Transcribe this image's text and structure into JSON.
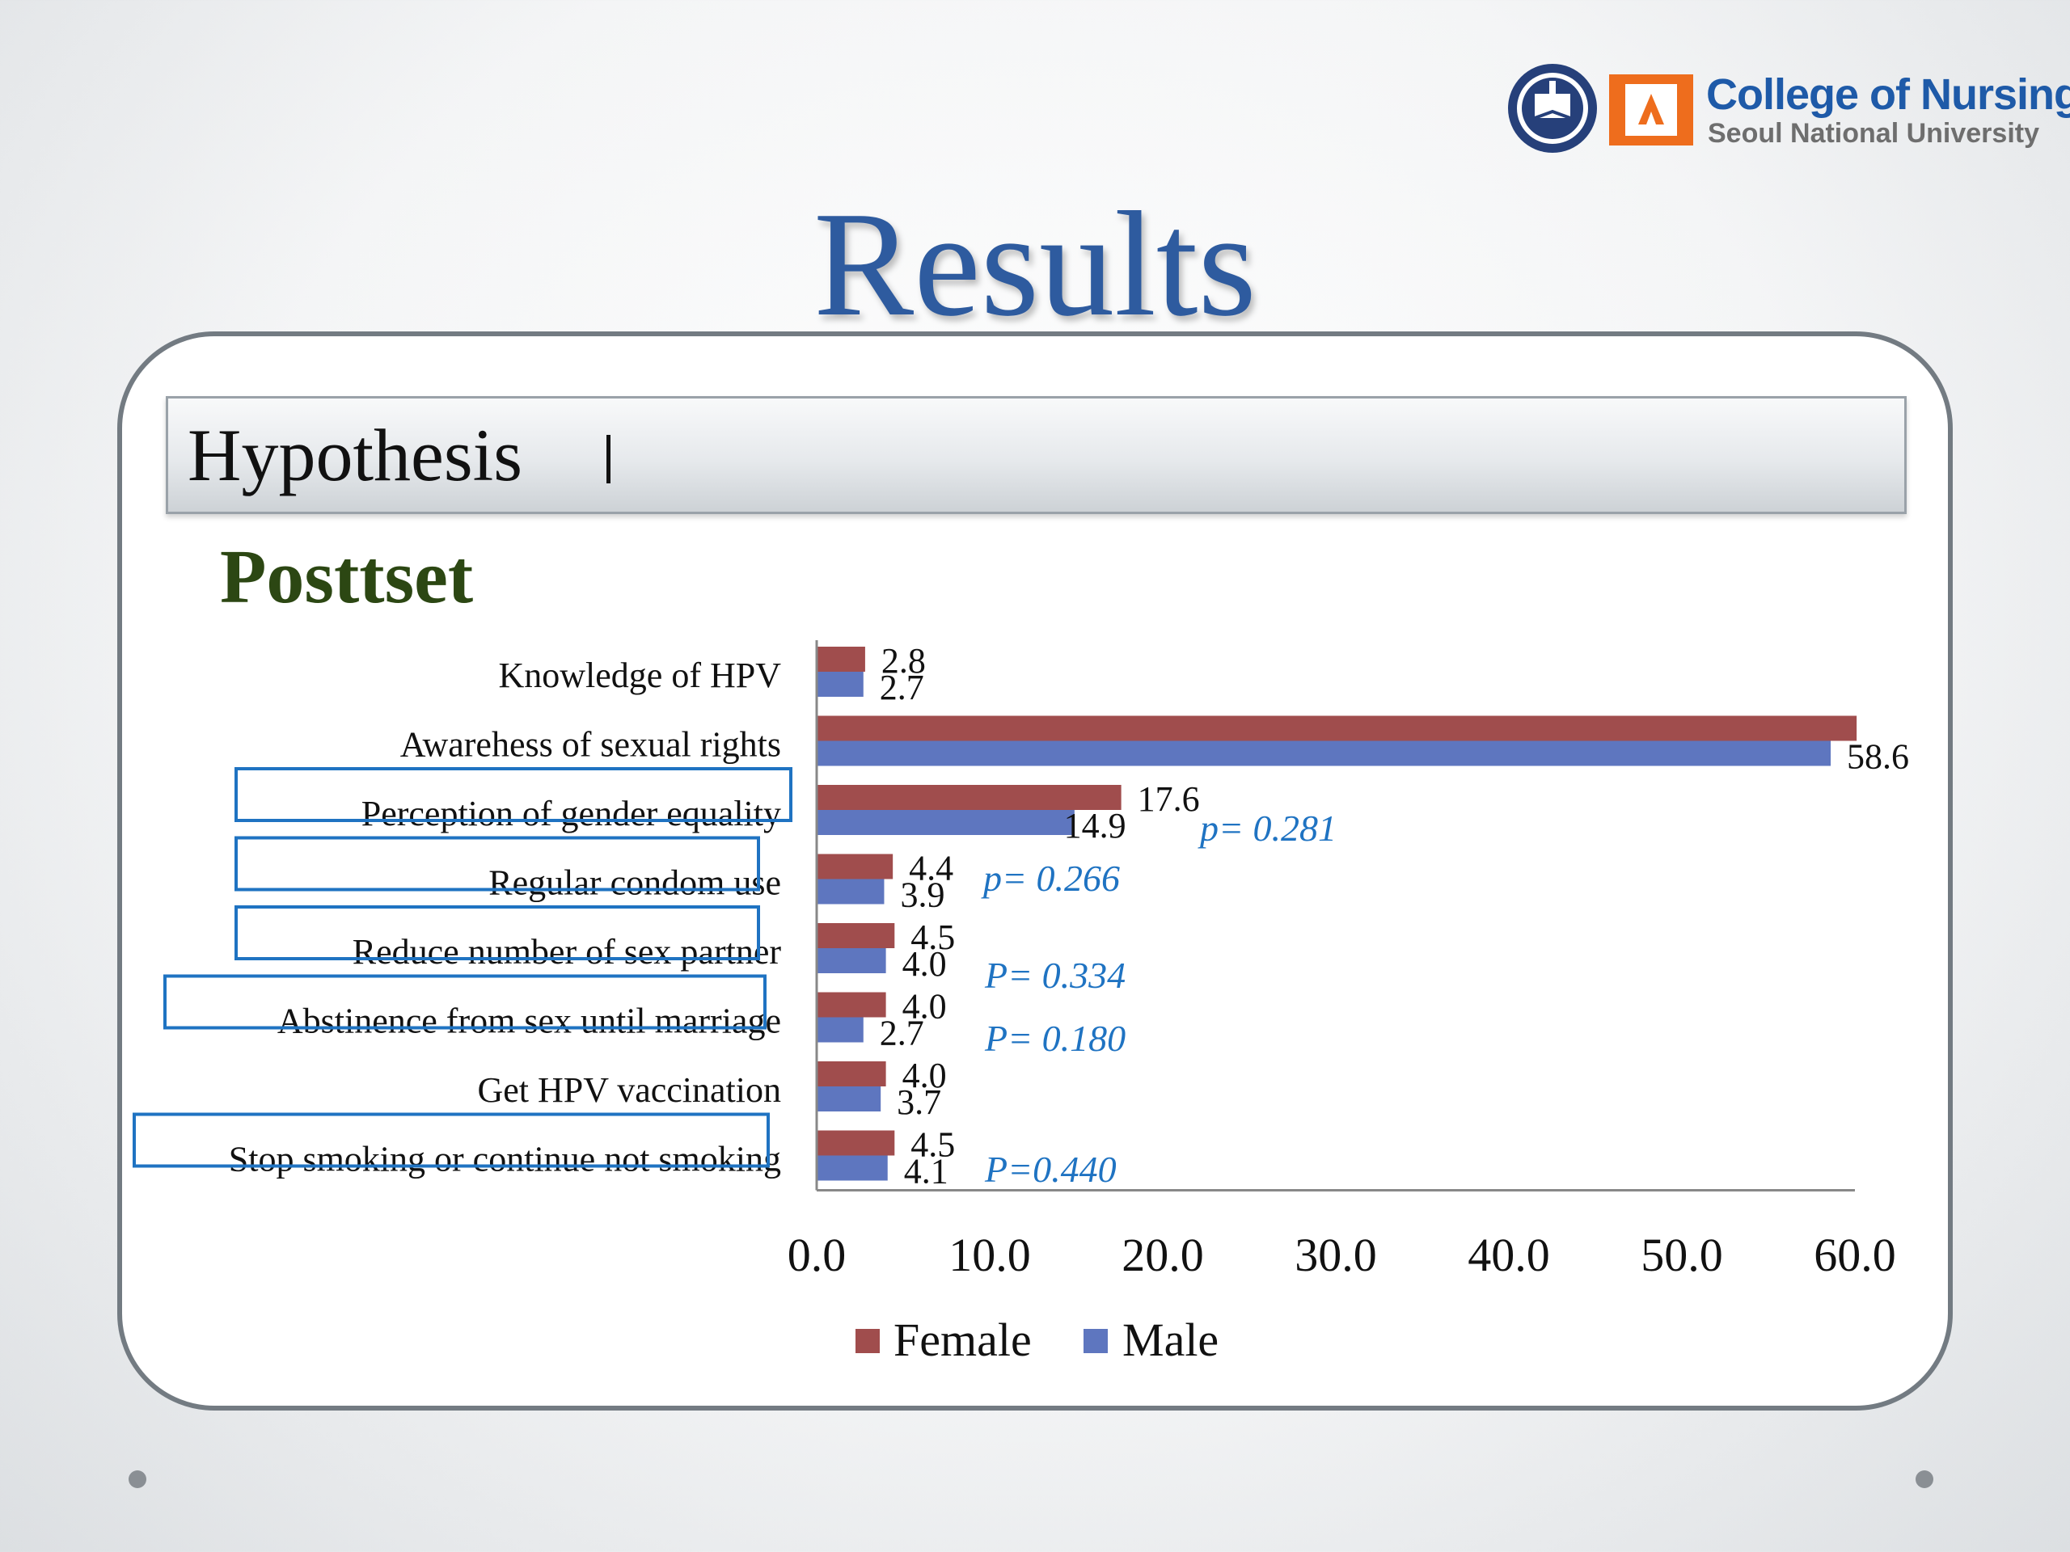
{
  "logo": {
    "line1": "College of Nursing",
    "line2": "Seoul National University",
    "brand_blue": "#1e5aa8",
    "brand_orange": "#ee6d1d"
  },
  "slide": {
    "title": "Results",
    "section": "Hypothesis",
    "subtitle": "Posttset"
  },
  "colors": {
    "title": "#2e5b9f",
    "female": "#a04d4d",
    "male": "#5e76bf",
    "pvalue": "#1f73c2",
    "highlight_box": "#1f73c2",
    "subtitle": "#2c4713"
  },
  "chart_data": {
    "type": "bar",
    "orientation": "horizontal",
    "categories": [
      "Knowledge of HPV",
      "Awarehess of sexual rights",
      "Perception of gender equality",
      "Regular condom use",
      "Reduce number of sex partner",
      "Abstinence from sex until marriage",
      "Get HPV vaccination",
      "Stop smoking or continue not smoking"
    ],
    "series": [
      {
        "name": "Female",
        "values": [
          2.8,
          60.1,
          17.6,
          4.4,
          4.5,
          4.0,
          4.0,
          4.5
        ],
        "labels": [
          "2.8",
          "",
          "17.6",
          "4.4",
          "4.5",
          "4.0",
          "4.0",
          "4.5"
        ]
      },
      {
        "name": "Male",
        "values": [
          2.7,
          58.6,
          14.9,
          3.9,
          4.0,
          2.7,
          3.7,
          4.1
        ],
        "labels": [
          "2.7",
          "58.6",
          "14.9",
          "3.9",
          "4.0",
          "2.7",
          "3.7",
          "4.1"
        ]
      }
    ],
    "xlim": [
      0,
      60
    ],
    "xticks": [
      "0.0",
      "10.0",
      "20.0",
      "30.0",
      "40.0",
      "50.0",
      "60.0"
    ],
    "legend_position": "bottom",
    "highlighted_categories": [
      2,
      3,
      4,
      5,
      7
    ],
    "annotations": [
      {
        "category": 2,
        "text": "p= 0.281"
      },
      {
        "category": 3,
        "text": "p= 0.266"
      },
      {
        "category": 4,
        "text": "P= 0.334"
      },
      {
        "category": 5,
        "text": "P= 0.180"
      },
      {
        "category": 7,
        "text": "P=0.440"
      }
    ]
  }
}
